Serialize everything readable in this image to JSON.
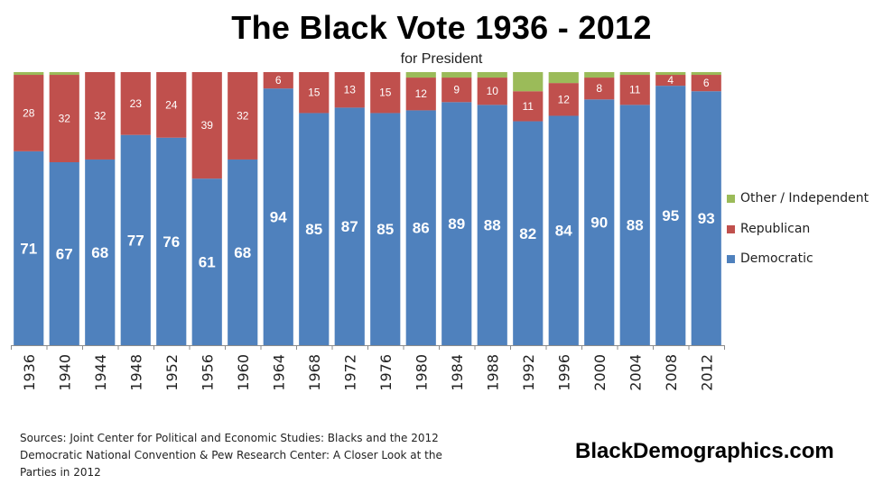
{
  "chart_data": {
    "type": "bar",
    "stacked": true,
    "title": "The Black Vote 1936 - 2012",
    "subtitle": "for President",
    "categories": [
      "1936",
      "1940",
      "1944",
      "1948",
      "1952",
      "1956",
      "1960",
      "1964",
      "1968",
      "1972",
      "1976",
      "1980",
      "1984",
      "1988",
      "1992",
      "1996",
      "2000",
      "2004",
      "2008",
      "2012"
    ],
    "series": [
      {
        "name": "Democratic",
        "color": "#4f81bd",
        "values": [
          71,
          67,
          68,
          77,
          76,
          61,
          68,
          94,
          85,
          87,
          85,
          86,
          89,
          88,
          82,
          84,
          90,
          88,
          95,
          93
        ]
      },
      {
        "name": "Republican",
        "color": "#c0504d",
        "values": [
          28,
          32,
          32,
          23,
          24,
          39,
          32,
          6,
          15,
          13,
          15,
          12,
          9,
          10,
          11,
          12,
          8,
          11,
          4,
          6
        ]
      },
      {
        "name": "Other / Independent",
        "color": "#9bbb59",
        "values": [
          1,
          1,
          0,
          0,
          0,
          0,
          0,
          0,
          0,
          0,
          0,
          2,
          2,
          2,
          7,
          4,
          2,
          1,
          1,
          1
        ]
      }
    ],
    "ylim": [
      0,
      100
    ],
    "xlabel": "",
    "ylabel": "",
    "legend_position": "right",
    "legend": [
      "Other / Independent",
      "Republican",
      "Democratic"
    ]
  },
  "footer": {
    "sources_lines": [
      "Sources: Joint Center for Political and Economic Studies: Blacks and the 2012",
      "Democratic National Convention & Pew Research Center: A Closer Look at the",
      "Parties in 2012"
    ],
    "site": "BlackDemographics.com"
  }
}
